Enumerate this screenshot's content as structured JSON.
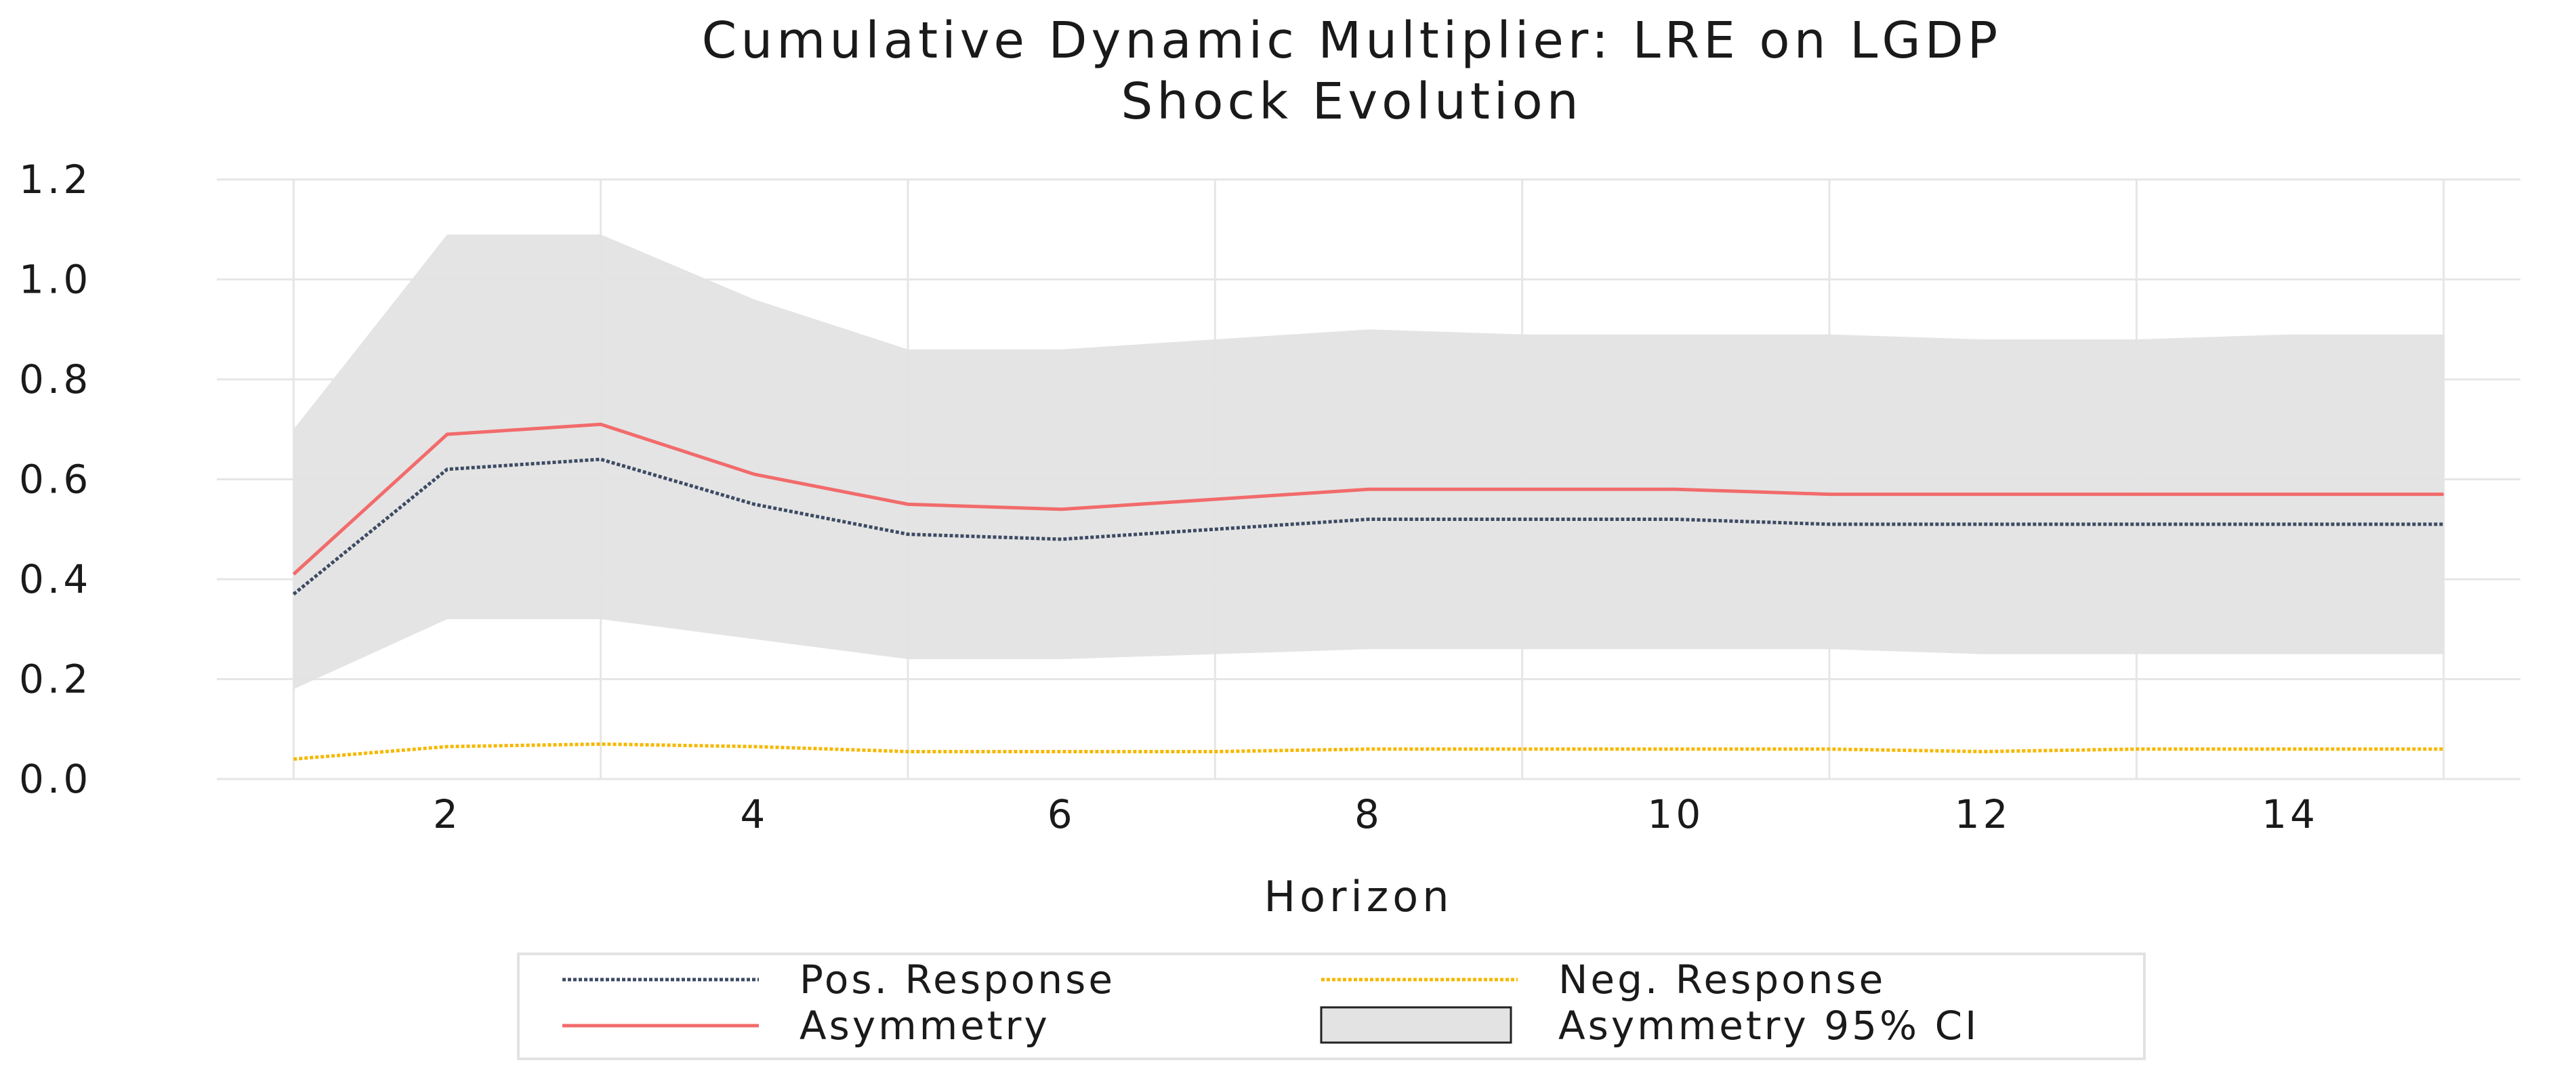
{
  "chart_data": {
    "type": "line",
    "title": "Cumulative Dynamic Multiplier: LRE on LGDP",
    "subtitle": "Shock Evolution",
    "xlabel": "Horizon",
    "ylabel": "",
    "xlim": [
      0.5,
      15.5
    ],
    "ylim": [
      0.0,
      1.2
    ],
    "xticks": [
      "2",
      "4",
      "6",
      "8",
      "10",
      "12",
      "14"
    ],
    "yticks": [
      "0.0",
      "0.2",
      "0.4",
      "0.6",
      "0.8",
      "1.0",
      "1.2"
    ],
    "grid": true,
    "legend_position": "bottom",
    "x": [
      1,
      2,
      3,
      4,
      5,
      6,
      7,
      8,
      9,
      10,
      11,
      12,
      13,
      14,
      15
    ],
    "series": [
      {
        "name": "Pos. Response",
        "color": "#3d4a63",
        "style": "dotted",
        "values": [
          0.37,
          0.62,
          0.64,
          0.55,
          0.49,
          0.48,
          0.5,
          0.52,
          0.52,
          0.52,
          0.51,
          0.51,
          0.51,
          0.51,
          0.51
        ]
      },
      {
        "name": "Neg. Response",
        "color": "#f5b800",
        "style": "dotted",
        "values": [
          0.04,
          0.065,
          0.07,
          0.065,
          0.055,
          0.055,
          0.055,
          0.06,
          0.06,
          0.06,
          0.06,
          0.055,
          0.06,
          0.06,
          0.06
        ]
      },
      {
        "name": "Asymmetry",
        "color": "#f26b6b",
        "style": "solid",
        "values": [
          0.41,
          0.69,
          0.71,
          0.61,
          0.55,
          0.54,
          0.56,
          0.58,
          0.58,
          0.58,
          0.57,
          0.57,
          0.57,
          0.57,
          0.57
        ]
      }
    ],
    "band": {
      "name": "Asymmetry 95% CI",
      "color": "#e3e3e3",
      "lower": [
        0.18,
        0.32,
        0.32,
        0.28,
        0.24,
        0.24,
        0.25,
        0.26,
        0.26,
        0.26,
        0.26,
        0.25,
        0.25,
        0.25,
        0.25
      ],
      "upper": [
        0.7,
        1.09,
        1.09,
        0.96,
        0.86,
        0.86,
        0.88,
        0.9,
        0.89,
        0.89,
        0.89,
        0.88,
        0.88,
        0.89,
        0.89
      ]
    }
  }
}
